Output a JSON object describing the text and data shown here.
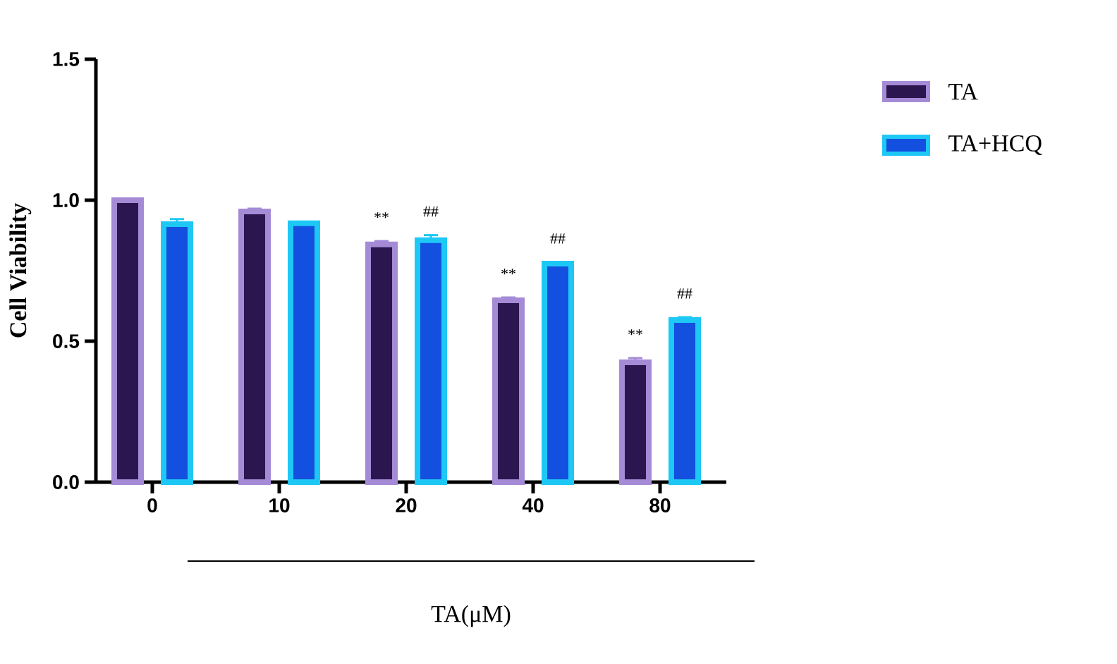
{
  "chart_data": {
    "type": "bar",
    "ylabel": "Cell Viability",
    "xlabel": "TA(μM)",
    "categories": [
      "0",
      "10",
      "20",
      "40",
      "80"
    ],
    "series": [
      {
        "name": "TA",
        "color": "#2c1650",
        "values": [
          1.0,
          0.96,
          0.843,
          0.645,
          0.425
        ],
        "errors": [
          null,
          0.01,
          0.012,
          0.01,
          0.015
        ]
      },
      {
        "name": "TA+HCQ",
        "color": "#1350e0",
        "values": [
          0.915,
          0.918,
          0.858,
          0.775,
          0.575
        ],
        "errors": [
          0.018,
          0.005,
          0.018,
          0.005,
          0.01
        ]
      }
    ],
    "annotations": [
      "**",
      "##",
      "**",
      "##",
      "**",
      "##"
    ],
    "ylim": [
      0,
      1.5
    ],
    "yticks": [
      {
        "value": 0,
        "label": "0.0"
      },
      {
        "value": 0.5,
        "label": "0.5"
      },
      {
        "value": 1,
        "label": "1.0"
      },
      {
        "value": 1.5,
        "label": "1.5"
      }
    ],
    "legend": "top right",
    "grid": false
  }
}
